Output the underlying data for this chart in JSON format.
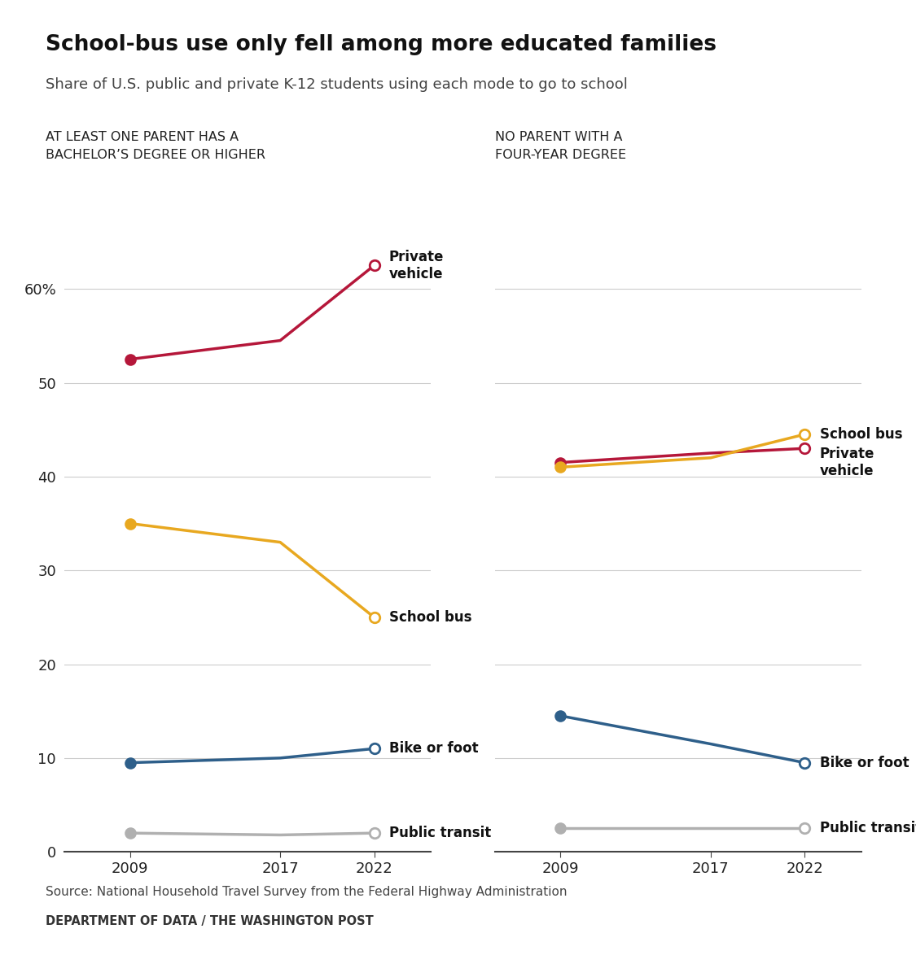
{
  "title": "School-bus use only fell among more educated families",
  "subtitle": "Share of U.S. public and private K-12 students using each mode to go to school",
  "left_panel_title": "AT LEAST ONE PARENT HAS A\nBACHELOR’S DEGREE OR HIGHER",
  "right_panel_title": "NO PARENT WITH A\nFOUR-YEAR DEGREE",
  "years": [
    2009,
    2017,
    2022
  ],
  "left": {
    "private_vehicle": [
      52.5,
      54.5,
      62.5
    ],
    "school_bus": [
      35.0,
      33.0,
      25.0
    ],
    "bike_or_foot": [
      9.5,
      10.0,
      11.0
    ],
    "public_transit": [
      2.0,
      1.8,
      2.0
    ]
  },
  "right": {
    "private_vehicle": [
      41.5,
      42.5,
      43.0
    ],
    "school_bus": [
      41.0,
      42.0,
      44.5
    ],
    "bike_or_foot": [
      14.5,
      11.5,
      9.5
    ],
    "public_transit": [
      2.5,
      2.5,
      2.5
    ]
  },
  "colors": {
    "private_vehicle": "#b5173a",
    "school_bus": "#e8a820",
    "bike_or_foot": "#2e5f8a",
    "public_transit": "#b0b0b0"
  },
  "left_labels": {
    "private_vehicle": "Private\nvehicle",
    "school_bus": "School bus",
    "bike_or_foot": "Bike or foot",
    "public_transit": "Public transit"
  },
  "right_labels": {
    "school_bus": "School bus",
    "private_vehicle": "Private\nvehicle",
    "bike_or_foot": "Bike or foot",
    "public_transit": "Public transit"
  },
  "source_line1": "Source: National Household Travel Survey from the Federal Highway Administration",
  "source_line2": "DEPARTMENT OF DATA / THE WASHINGTON POST",
  "background_color": "#ffffff",
  "ylim": [
    0,
    65
  ],
  "yticks": [
    0,
    10,
    20,
    30,
    40,
    50,
    60
  ]
}
